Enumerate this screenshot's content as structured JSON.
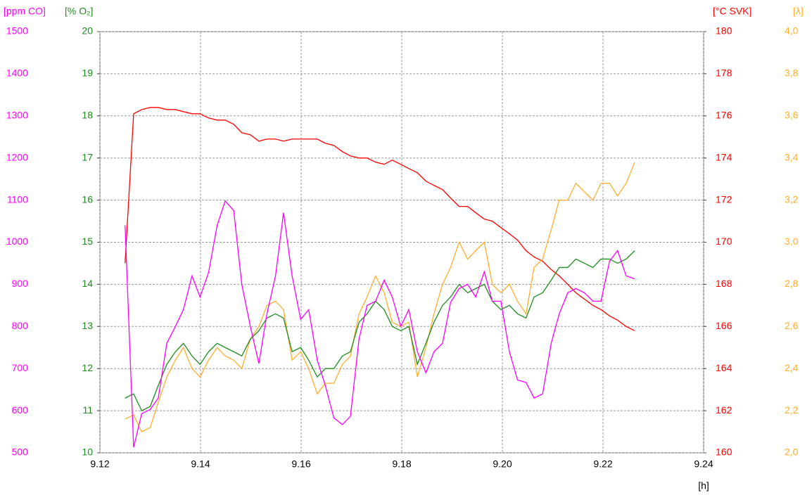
{
  "chart_data": {
    "type": "line",
    "x": [
      9.125,
      9.1267,
      9.1283,
      9.13,
      9.1316,
      9.1333,
      9.135,
      9.1366,
      9.1383,
      9.1399,
      9.1416,
      9.1433,
      9.1449,
      9.1466,
      9.1482,
      9.1499,
      9.1516,
      9.1532,
      9.1549,
      9.1565,
      9.1582,
      9.1599,
      9.1615,
      9.1632,
      9.1648,
      9.1665,
      9.1682,
      9.1698,
      9.1715,
      9.1731,
      9.1748,
      9.1765,
      9.1781,
      9.1798,
      9.1814,
      9.1831,
      9.1848,
      9.1864,
      9.1881,
      9.1897,
      9.1914,
      9.1931,
      9.1947,
      9.1964,
      9.198,
      9.1997,
      9.2014,
      9.203,
      9.2047,
      9.2063,
      9.208,
      9.2097,
      9.2113,
      9.213,
      9.2146,
      9.2163,
      9.218,
      9.2196,
      9.2213,
      9.2229,
      9.2246,
      9.2263
    ],
    "xlim": [
      9.12,
      9.24
    ],
    "xticks": [
      9.12,
      9.14,
      9.16,
      9.18,
      {
        "value": 9.2,
        "label": "9.20"
      },
      9.22,
      9.24
    ],
    "xlabel": "[h]",
    "grid": true,
    "axes": {
      "co": {
        "label": "[ppm CO]",
        "color": "#ff00ff",
        "side": "left-outer",
        "lim": [
          500,
          1500
        ],
        "ticks": [
          500,
          600,
          700,
          800,
          900,
          1000,
          1100,
          1200,
          1300,
          1400,
          1500
        ]
      },
      "o2": {
        "label": "[% O₂]",
        "color": "#1e8c1e",
        "side": "left",
        "lim": [
          10,
          20
        ],
        "ticks": [
          10,
          11,
          12,
          13,
          14,
          15,
          16,
          17,
          18,
          19,
          20
        ]
      },
      "svk": {
        "label": "[°C SVK]",
        "color": "#ff0000",
        "side": "right",
        "lim": [
          160,
          180
        ],
        "ticks": [
          160,
          162,
          164,
          166,
          168,
          170,
          172,
          174,
          176,
          178,
          180
        ]
      },
      "lambda": {
        "label": "[λ]",
        "color": "#ffae2e",
        "side": "right-outer",
        "lim": [
          2.0,
          4.0
        ],
        "ticks": [
          {
            "value": 2.0,
            "label": "2,0"
          },
          {
            "value": 2.2,
            "label": "2,2"
          },
          {
            "value": 2.4,
            "label": "2,4"
          },
          {
            "value": 2.6,
            "label": "2,6"
          },
          {
            "value": 2.8,
            "label": "2,8"
          },
          {
            "value": 3.0,
            "label": "3,0"
          },
          {
            "value": 3.2,
            "label": "3,2"
          },
          {
            "value": 3.4,
            "label": "3,4"
          },
          {
            "value": 3.6,
            "label": "3,6"
          },
          {
            "value": 3.8,
            "label": "3,8"
          },
          {
            "value": 4.0,
            "label": "4,0"
          }
        ]
      }
    },
    "series": [
      {
        "axis": "svk",
        "color": "#ff0000",
        "values": [
          169.0,
          176.1,
          176.3,
          176.4,
          176.4,
          176.3,
          176.3,
          176.2,
          176.1,
          176.1,
          175.9,
          175.8,
          175.8,
          175.6,
          175.2,
          175.1,
          174.8,
          174.9,
          174.9,
          174.8,
          174.9,
          174.9,
          174.9,
          174.9,
          174.7,
          174.6,
          174.3,
          174.1,
          174.0,
          174.0,
          173.8,
          173.7,
          173.9,
          173.7,
          173.5,
          173.3,
          172.9,
          172.7,
          172.5,
          172.1,
          171.7,
          171.7,
          171.4,
          171.1,
          171.0,
          170.7,
          170.4,
          170.1,
          169.6,
          169.3,
          169.1,
          168.7,
          168.4,
          168.0,
          167.6,
          167.3,
          167.0,
          166.8,
          166.5,
          166.3,
          166.0,
          165.8
        ]
      },
      {
        "axis": "lambda",
        "color": "#ffae2e",
        "values": [
          2.16,
          2.18,
          2.1,
          2.12,
          2.24,
          2.36,
          2.44,
          2.5,
          2.4,
          2.36,
          2.44,
          2.5,
          2.46,
          2.44,
          2.4,
          2.54,
          2.6,
          2.7,
          2.72,
          2.68,
          2.44,
          2.48,
          2.4,
          2.28,
          2.33,
          2.33,
          2.42,
          2.46,
          2.66,
          2.74,
          2.84,
          2.76,
          2.62,
          2.6,
          2.62,
          2.36,
          2.5,
          2.66,
          2.8,
          2.88,
          3.0,
          2.92,
          2.96,
          3.0,
          2.8,
          2.76,
          2.8,
          2.72,
          2.66,
          2.88,
          2.92,
          3.06,
          3.2,
          3.2,
          3.28,
          3.24,
          3.2,
          3.28,
          3.28,
          3.22,
          3.28,
          3.38
        ]
      },
      {
        "axis": "o2",
        "color": "#1e8c1e",
        "values": [
          11.3,
          11.4,
          11.0,
          11.1,
          11.6,
          12.1,
          12.4,
          12.6,
          12.3,
          12.1,
          12.4,
          12.6,
          12.5,
          12.4,
          12.3,
          12.7,
          12.9,
          13.2,
          13.3,
          13.2,
          12.4,
          12.5,
          12.2,
          11.8,
          12.0,
          12.0,
          12.3,
          12.4,
          13.1,
          13.3,
          13.6,
          13.4,
          13.0,
          12.9,
          13.0,
          12.1,
          12.6,
          13.1,
          13.5,
          13.7,
          14.0,
          13.8,
          13.9,
          14.0,
          13.6,
          13.4,
          13.5,
          13.3,
          13.2,
          13.7,
          13.8,
          14.1,
          14.4,
          14.4,
          14.6,
          14.5,
          14.4,
          14.6,
          14.6,
          14.5,
          14.6,
          14.8
        ]
      },
      {
        "axis": "co",
        "color": "#ff00ff",
        "values": [
          1040,
          513,
          593,
          603,
          630,
          760,
          800,
          840,
          920,
          870,
          928,
          1040,
          1098,
          1075,
          900,
          800,
          712,
          830,
          920,
          1070,
          920,
          817,
          840,
          720,
          660,
          583,
          567,
          587,
          770,
          850,
          860,
          910,
          870,
          800,
          840,
          740,
          690,
          740,
          760,
          857,
          890,
          900,
          870,
          930,
          860,
          860,
          740,
          673,
          667,
          630,
          640,
          760,
          830,
          880,
          890,
          880,
          860,
          860,
          955,
          980,
          920,
          913
        ]
      }
    ]
  }
}
